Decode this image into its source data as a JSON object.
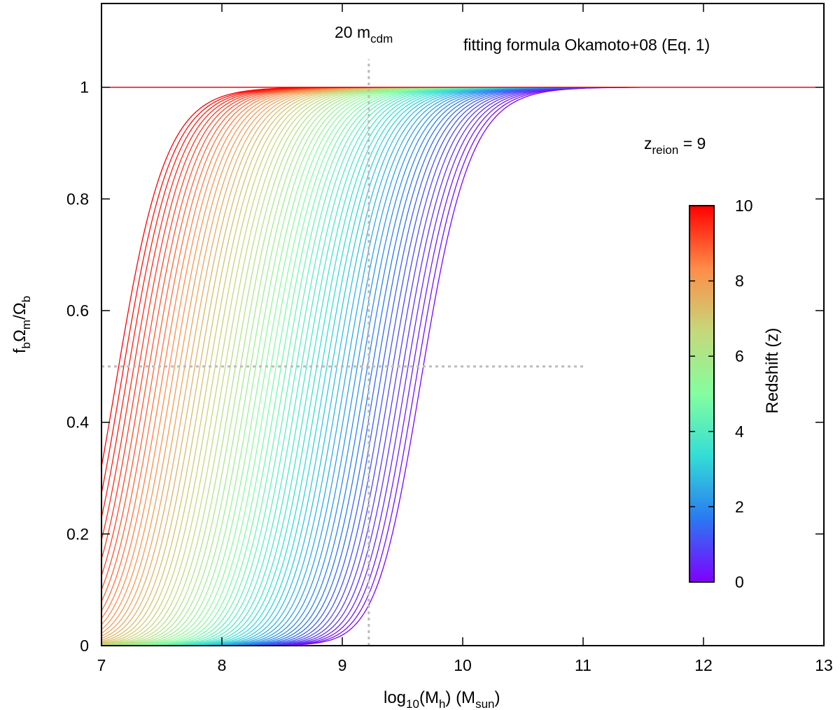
{
  "chart_data": {
    "type": "line",
    "title": "",
    "xlabel": {
      "base": "log",
      "sub1": "10",
      "mid": "(M",
      "sub2": "h",
      "mid2": ") (M",
      "sub3": "sun",
      "end": ")"
    },
    "ylabel": {
      "p1": "f",
      "s1": "b",
      "p2": "Ω",
      "s2": "m",
      "p3": "/Ω",
      "s3": "b"
    },
    "xlim": [
      7,
      13
    ],
    "ylim": [
      0,
      1.15
    ],
    "xticks": [
      "7",
      "8",
      "9",
      "10",
      "11",
      "12",
      "13"
    ],
    "yticks": [
      "0",
      "0.2",
      "0.4",
      "0.6",
      "0.8",
      "1"
    ],
    "xtick_values": [
      7,
      8,
      9,
      10,
      11,
      12,
      13
    ],
    "ytick_values": [
      0,
      0.2,
      0.4,
      0.6,
      0.8,
      1.0
    ],
    "annotations": {
      "fit": "fitting formula Okamoto+08 (Eq. 1)",
      "mcdm_main": "20 m",
      "mcdm_sub": "cdm",
      "zreion_main": "z",
      "zreion_sub": "reion",
      "zreion_value": " = 9"
    },
    "reference_lines": {
      "vertical_x": 9.22,
      "vertical_y_max": 1.05,
      "horizontal_y": 0.5,
      "horizontal_x_max": 11.0,
      "unity_y": 1.0
    },
    "series": {
      "description": "family of curves f_b = (1 + (2^(1/3) - 1)(M_c/M)^2)^(-3/2), one per redshift",
      "z_min": 0,
      "z_max": 10,
      "count": 61,
      "log10_Mc_at_zmin": 9.85,
      "log10_Mc_at_zmax": 7.32,
      "alpha": 2
    },
    "colorbar": {
      "label": "Redshift (z)",
      "range": [
        0,
        10
      ],
      "ticks": [
        "0",
        "2",
        "4",
        "6",
        "8",
        "10"
      ],
      "tick_values": [
        0,
        2,
        4,
        6,
        8,
        10
      ],
      "colormap": [
        "#7f00ff",
        "#2a78f2",
        "#32ddd6",
        "#84fe9f",
        "#c5d87a",
        "#ff8c48",
        "#ff0000"
      ]
    }
  }
}
